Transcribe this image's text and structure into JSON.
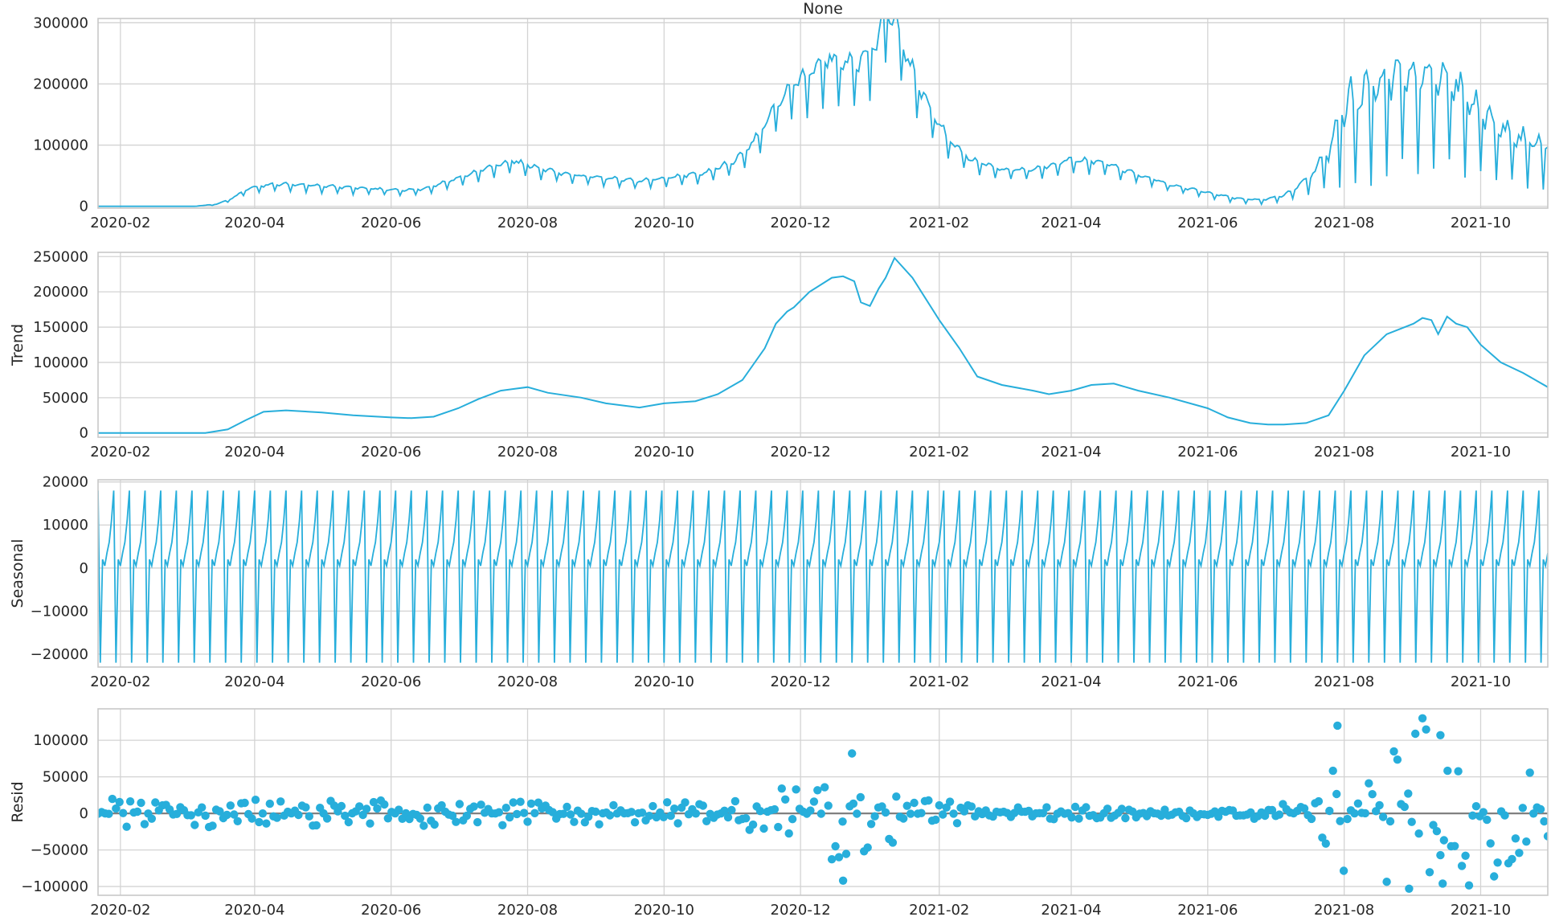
{
  "chart_data": {
    "type": "line",
    "title": "None",
    "colors": {
      "series": "#27aedb",
      "zero_line": "#808080",
      "grid": "#d3d3d3"
    },
    "x_range": [
      "2020-01-22",
      "2021-10-31"
    ],
    "x_ticks": [
      "2020-02",
      "2020-04",
      "2020-06",
      "2020-08",
      "2020-10",
      "2020-12",
      "2021-02",
      "2021-04",
      "2021-06",
      "2021-08",
      "2021-10"
    ],
    "grid": true,
    "panels": [
      {
        "name": "observed",
        "ylabel": "",
        "kind": "line",
        "ylim": [
          -3000,
          307000
        ],
        "yticks": [
          0,
          100000,
          200000,
          300000
        ],
        "ytick_labels": [
          "0",
          "100000",
          "200000",
          "300000"
        ],
        "x": [
          "2020-01-22",
          "2020-03-05",
          "2020-03-15",
          "2020-03-22",
          "2020-03-29",
          "2020-04-10",
          "2020-04-25",
          "2020-05-15",
          "2020-06-01",
          "2020-06-15",
          "2020-07-01",
          "2020-07-15",
          "2020-07-25",
          "2020-08-05",
          "2020-08-20",
          "2020-09-05",
          "2020-09-20",
          "2020-10-05",
          "2020-10-20",
          "2020-11-01",
          "2020-11-10",
          "2020-11-20",
          "2020-11-28",
          "2020-12-05",
          "2020-12-12",
          "2020-12-20",
          "2020-12-28",
          "2021-01-04",
          "2021-01-08",
          "2021-01-14",
          "2021-01-20",
          "2021-01-27",
          "2021-02-05",
          "2021-02-15",
          "2021-03-01",
          "2021-03-15",
          "2021-04-01",
          "2021-04-15",
          "2021-05-01",
          "2021-05-15",
          "2021-06-01",
          "2021-06-15",
          "2021-06-25",
          "2021-07-05",
          "2021-07-15",
          "2021-07-25",
          "2021-08-01",
          "2021-08-10",
          "2021-08-20",
          "2021-09-01",
          "2021-09-10",
          "2021-09-20",
          "2021-10-01",
          "2021-10-10",
          "2021-10-20",
          "2021-10-31"
        ],
        "values": [
          0,
          0,
          3000,
          12000,
          26000,
          33000,
          31000,
          27000,
          24000,
          25000,
          42000,
          58000,
          68000,
          58000,
          47000,
          42000,
          37000,
          43000,
          50000,
          66000,
          95000,
          150000,
          180000,
          195000,
          220000,
          210000,
          215000,
          240000,
          300000,
          260000,
          200000,
          150000,
          100000,
          70000,
          55000,
          55000,
          70000,
          65000,
          47000,
          32000,
          20000,
          10000,
          8000,
          15000,
          35000,
          70000,
          120000,
          140000,
          160000,
          165000,
          175000,
          150000,
          120000,
          100000,
          85000,
          80000
        ],
        "weekly_swing": [
          0,
          0,
          1000,
          3000,
          6000,
          8000,
          8000,
          7000,
          6000,
          6000,
          9000,
          12000,
          13000,
          12000,
          10000,
          9000,
          9000,
          10000,
          12000,
          15000,
          22000,
          32000,
          40000,
          45000,
          50000,
          48000,
          50000,
          55000,
          60000,
          55000,
          45000,
          32000,
          20000,
          14000,
          11000,
          11000,
          14000,
          13000,
          10000,
          7000,
          6000,
          5000,
          5000,
          6000,
          15000,
          40000,
          90000,
          100000,
          100000,
          100000,
          100000,
          95000,
          75000,
          60000,
          50000,
          45000
        ]
      },
      {
        "name": "trend",
        "ylabel": "Trend",
        "kind": "line",
        "ylim": [
          -6000,
          256000
        ],
        "yticks": [
          0,
          50000,
          100000,
          150000,
          200000,
          250000
        ],
        "ytick_labels": [
          "0",
          "50000",
          "100000",
          "150000",
          "200000",
          "250000"
        ],
        "x": [
          "2020-01-22",
          "2020-03-10",
          "2020-03-20",
          "2020-03-28",
          "2020-04-05",
          "2020-04-15",
          "2020-05-01",
          "2020-05-15",
          "2020-06-01",
          "2020-06-10",
          "2020-06-20",
          "2020-07-01",
          "2020-07-10",
          "2020-07-20",
          "2020-08-01",
          "2020-08-10",
          "2020-08-25",
          "2020-09-05",
          "2020-09-10",
          "2020-09-20",
          "2020-10-01",
          "2020-10-15",
          "2020-10-25",
          "2020-11-05",
          "2020-11-15",
          "2020-11-20",
          "2020-11-25",
          "2020-11-28",
          "2020-12-05",
          "2020-12-15",
          "2020-12-20",
          "2020-12-25",
          "2020-12-28",
          "2021-01-01",
          "2021-01-05",
          "2021-01-08",
          "2021-01-12",
          "2021-01-20",
          "2021-02-01",
          "2021-02-10",
          "2021-02-18",
          "2021-03-01",
          "2021-03-15",
          "2021-03-22",
          "2021-04-01",
          "2021-04-10",
          "2021-04-20",
          "2021-05-01",
          "2021-05-15",
          "2021-06-01",
          "2021-06-10",
          "2021-06-20",
          "2021-06-28",
          "2021-07-05",
          "2021-07-15",
          "2021-07-25",
          "2021-08-01",
          "2021-08-10",
          "2021-08-20",
          "2021-09-01",
          "2021-09-05",
          "2021-09-09",
          "2021-09-12",
          "2021-09-16",
          "2021-09-20",
          "2021-09-25",
          "2021-10-01",
          "2021-10-10",
          "2021-10-20",
          "2021-10-31"
        ],
        "values": [
          0,
          0,
          5000,
          18000,
          30000,
          32000,
          29000,
          25000,
          22000,
          21000,
          23000,
          35000,
          48000,
          60000,
          65000,
          57000,
          50000,
          42000,
          40000,
          36000,
          42000,
          45000,
          55000,
          75000,
          120000,
          155000,
          172000,
          178000,
          200000,
          220000,
          222000,
          215000,
          185000,
          180000,
          205000,
          220000,
          248000,
          220000,
          160000,
          120000,
          80000,
          68000,
          60000,
          55000,
          60000,
          68000,
          70000,
          60000,
          50000,
          35000,
          22000,
          14000,
          12000,
          12000,
          14000,
          25000,
          60000,
          110000,
          140000,
          155000,
          163000,
          160000,
          140000,
          165000,
          155000,
          150000,
          125000,
          100000,
          85000,
          65000
        ]
      },
      {
        "name": "seasonal",
        "ylabel": "Seasonal",
        "kind": "line",
        "ylim": [
          -23000,
          20500
        ],
        "yticks": [
          -20000,
          -10000,
          0,
          10000,
          20000
        ],
        "ytick_labels": [
          "−20000",
          "−10000",
          "0",
          "10000",
          "20000"
        ],
        "start": "2020-01-22",
        "end": "2021-10-31",
        "period_days": 7,
        "weekly_pattern": [
          18000,
          -22000,
          2000,
          500,
          3500,
          6000,
          11000
        ]
      },
      {
        "name": "resid",
        "ylabel": "Resid",
        "kind": "scatter",
        "ylim": [
          -112000,
          143000
        ],
        "yticks": [
          -100000,
          -50000,
          0,
          50000,
          100000
        ],
        "ytick_labels": [
          "−100000",
          "−50000",
          "0",
          "50000",
          "100000"
        ],
        "zero_line": true,
        "amplitude_x": [
          "2020-01-22",
          "2020-06-01",
          "2020-10-15",
          "2020-11-15",
          "2020-12-01",
          "2020-12-20",
          "2021-01-10",
          "2021-02-01",
          "2021-03-01",
          "2021-05-01",
          "2021-07-01",
          "2021-07-20",
          "2021-08-05",
          "2021-09-05",
          "2021-10-05",
          "2021-10-31"
        ],
        "amplitude": [
          20000,
          18000,
          15000,
          25000,
          45000,
          70000,
          50000,
          20000,
          10000,
          8000,
          8000,
          40000,
          100000,
          120000,
          90000,
          45000
        ],
        "notable_points": [
          {
            "x": "2020-12-24",
            "y": 82000
          },
          {
            "x": "2020-12-20",
            "y": -92000
          },
          {
            "x": "2021-07-29",
            "y": 120000
          },
          {
            "x": "2021-09-05",
            "y": 130000
          },
          {
            "x": "2021-09-13",
            "y": 107000
          },
          {
            "x": "2021-08-30",
            "y": -103000
          },
          {
            "x": "2021-09-14",
            "y": -96000
          }
        ]
      }
    ]
  }
}
